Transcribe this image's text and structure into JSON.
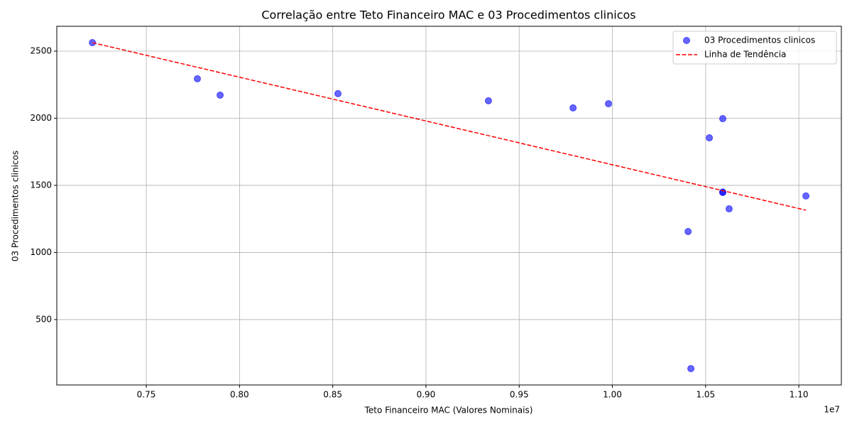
{
  "chart_data": {
    "type": "scatter",
    "title": "Correlação entre Teto Financeiro MAC e 03 Procedimentos clinicos",
    "x_label": "Teto Financeiro MAC (Valores Nominais)",
    "y_label": "03 Procedimentos clinicos",
    "x_offset_label": "1e7",
    "xlim": [
      7020000,
      11228000
    ],
    "ylim": [
      13,
      2685
    ],
    "xticks": [
      {
        "value": 7500000,
        "label": "0.75"
      },
      {
        "value": 8000000,
        "label": "0.80"
      },
      {
        "value": 8500000,
        "label": "0.85"
      },
      {
        "value": 9000000,
        "label": "0.90"
      },
      {
        "value": 9500000,
        "label": "0.95"
      },
      {
        "value": 10000000,
        "label": "1.00"
      },
      {
        "value": 10500000,
        "label": "1.05"
      },
      {
        "value": 11000000,
        "label": "1.10"
      }
    ],
    "yticks": [
      500,
      1000,
      1500,
      2000,
      2500
    ],
    "grid": true,
    "legend": "upper right",
    "series": [
      {
        "name": "03 Procedimentos clinicos",
        "color": "#0000ff",
        "mark": "scatter",
        "x": [
          7211000,
          7774000,
          7896000,
          8528000,
          9335000,
          9789000,
          9979000,
          10592000,
          10520000,
          10592000,
          10592000,
          10626000,
          11038000,
          10406000,
          10421000
        ],
        "values": [
          2563,
          2294,
          2172,
          2183,
          2130,
          2077,
          2108,
          1997,
          1854,
          1450,
          1447,
          1325,
          1421,
          1156,
          135
        ]
      },
      {
        "name": "Linha de Tendência",
        "color": "#ff0000",
        "mark": "dashed-line",
        "x": [
          7211000,
          11038000
        ],
        "values": [
          2563,
          1315
        ]
      }
    ]
  }
}
